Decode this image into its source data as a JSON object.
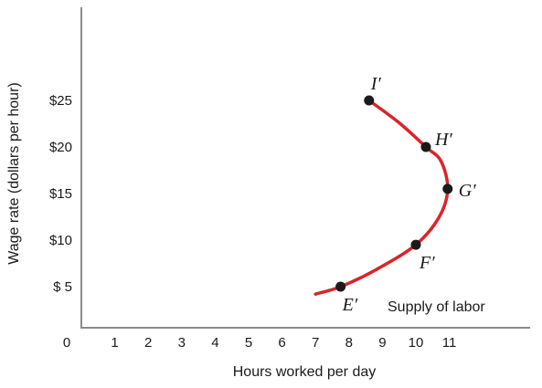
{
  "chart_data": {
    "type": "line",
    "xlabel": "Hours worked per day",
    "ylabel": "Wage rate (dollars per hour)",
    "x_ticks": [
      "1",
      "2",
      "3",
      "4",
      "5",
      "6",
      "7",
      "8",
      "9",
      "10",
      "11"
    ],
    "y_ticks": [
      "$ 5",
      "$10",
      "$15",
      "$20",
      "$25"
    ],
    "y_tick_values": [
      5,
      10,
      15,
      20,
      25
    ],
    "origin_label": "0",
    "xlim": [
      0,
      13.4
    ],
    "ylim": [
      0,
      32
    ],
    "grid": false,
    "series": [
      {
        "name": "Supply of labor",
        "color": "#d9252a",
        "curve": [
          {
            "x": 7.0,
            "y": 4.2
          },
          {
            "x": 7.75,
            "y": 5.0
          },
          {
            "x": 8.8,
            "y": 6.8
          },
          {
            "x": 10.0,
            "y": 9.5
          },
          {
            "x": 10.7,
            "y": 12.5
          },
          {
            "x": 10.95,
            "y": 15.5
          },
          {
            "x": 10.75,
            "y": 18.5
          },
          {
            "x": 10.3,
            "y": 20.0
          },
          {
            "x": 9.5,
            "y": 22.6
          },
          {
            "x": 8.6,
            "y": 25.0
          }
        ],
        "points": [
          {
            "label": "E′",
            "x": 7.75,
            "y": 5
          },
          {
            "label": "F′",
            "x": 10.0,
            "y": 9.5
          },
          {
            "label": "G′",
            "x": 10.95,
            "y": 15.5
          },
          {
            "label": "H′",
            "x": 10.3,
            "y": 20
          },
          {
            "label": "I′",
            "x": 8.6,
            "y": 25
          }
        ]
      }
    ]
  }
}
